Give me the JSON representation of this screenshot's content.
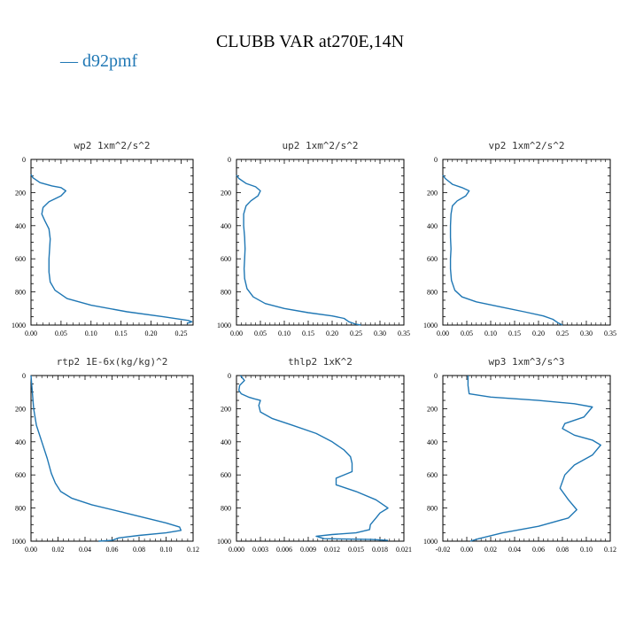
{
  "title": "CLUBB VAR at270E,14N",
  "legend": {
    "label": "— d92pmf",
    "color": "#1f77b4"
  },
  "chart_data": [
    {
      "type": "line",
      "title": "wp2  1xm^2/s^2",
      "xlim": [
        0,
        0.27
      ],
      "ylim": [
        1000,
        0
      ],
      "xticks": [
        "0.00",
        "0.05",
        "0.10",
        "0.15",
        "0.20",
        "0.25"
      ],
      "xtick_values": [
        0,
        0.05,
        0.1,
        0.15,
        0.2,
        0.25
      ],
      "yticks": [
        "0",
        "200",
        "400",
        "600",
        "800",
        "1000"
      ],
      "ytick_values": [
        0,
        200,
        400,
        600,
        800,
        1000
      ],
      "series": [
        {
          "color": "#1f77b4",
          "x": [
            0.0,
            0.003,
            0.015,
            0.035,
            0.05,
            0.058,
            0.05,
            0.03,
            0.02,
            0.018,
            0.023,
            0.03,
            0.032,
            0.031,
            0.03,
            0.03,
            0.032,
            0.04,
            0.06,
            0.1,
            0.16,
            0.22,
            0.262,
            0.268,
            0.26
          ],
          "y": [
            90,
            110,
            140,
            160,
            170,
            190,
            220,
            255,
            290,
            330,
            370,
            420,
            480,
            540,
            600,
            680,
            740,
            790,
            840,
            880,
            920,
            950,
            972,
            980,
            990
          ]
        }
      ]
    },
    {
      "type": "line",
      "title": "up2  1xm^2/s^2",
      "xlim": [
        0,
        0.35
      ],
      "ylim": [
        1000,
        0
      ],
      "xticks": [
        "0.00",
        "0.05",
        "0.10",
        "0.15",
        "0.20",
        "0.25",
        "0.30",
        "0.35"
      ],
      "xtick_values": [
        0,
        0.05,
        0.1,
        0.15,
        0.2,
        0.25,
        0.3,
        0.35
      ],
      "yticks": [
        "0",
        "200",
        "400",
        "600",
        "800",
        "1000"
      ],
      "ytick_values": [
        0,
        200,
        400,
        600,
        800,
        1000
      ],
      "series": [
        {
          "color": "#1f77b4",
          "x": [
            0.0,
            0.005,
            0.02,
            0.04,
            0.05,
            0.045,
            0.03,
            0.02,
            0.015,
            0.015,
            0.017,
            0.018,
            0.017,
            0.016,
            0.017,
            0.022,
            0.035,
            0.06,
            0.1,
            0.15,
            0.2,
            0.225,
            0.235,
            0.25,
            0.26
          ],
          "y": [
            95,
            115,
            145,
            165,
            190,
            220,
            250,
            280,
            330,
            400,
            470,
            540,
            600,
            660,
            720,
            780,
            830,
            870,
            900,
            925,
            945,
            960,
            980,
            995,
            1000
          ]
        }
      ]
    },
    {
      "type": "line",
      "title": "vp2  1xm^2/s^2",
      "xlim": [
        0,
        0.35
      ],
      "ylim": [
        1000,
        0
      ],
      "xticks": [
        "0.00",
        "0.05",
        "0.10",
        "0.15",
        "0.20",
        "0.25",
        "0.30",
        "0.35"
      ],
      "xtick_values": [
        0,
        0.05,
        0.1,
        0.15,
        0.2,
        0.25,
        0.3,
        0.35
      ],
      "yticks": [
        "0",
        "200",
        "400",
        "600",
        "800",
        "1000"
      ],
      "ytick_values": [
        0,
        200,
        400,
        600,
        800,
        1000
      ],
      "series": [
        {
          "color": "#1f77b4",
          "x": [
            0.0,
            0.005,
            0.02,
            0.04,
            0.055,
            0.048,
            0.03,
            0.02,
            0.017,
            0.016,
            0.016,
            0.017,
            0.016,
            0.016,
            0.018,
            0.025,
            0.04,
            0.07,
            0.12,
            0.17,
            0.21,
            0.23,
            0.24,
            0.25
          ],
          "y": [
            95,
            115,
            150,
            170,
            190,
            220,
            250,
            280,
            330,
            400,
            470,
            540,
            600,
            660,
            730,
            790,
            830,
            860,
            890,
            920,
            945,
            965,
            985,
            1000
          ]
        }
      ]
    },
    {
      "type": "line",
      "title": "rtp2  1E-6x(kg/kg)^2",
      "xlim": [
        0,
        0.12
      ],
      "ylim": [
        1000,
        0
      ],
      "xticks": [
        "0.00",
        "0.02",
        "0.04",
        "0.06",
        "0.08",
        "0.10",
        "0.12"
      ],
      "xtick_values": [
        0,
        0.02,
        0.04,
        0.06,
        0.08,
        0.1,
        0.12
      ],
      "yticks": [
        "0",
        "200",
        "400",
        "600",
        "800",
        "1000"
      ],
      "ytick_values": [
        0,
        200,
        400,
        600,
        800,
        1000
      ],
      "series": [
        {
          "color": "#1f77b4",
          "x": [
            0.0,
            0.001,
            0.002,
            0.004,
            0.008,
            0.012,
            0.015,
            0.018,
            0.022,
            0.03,
            0.045,
            0.065,
            0.085,
            0.1,
            0.11,
            0.111,
            0.1,
            0.08,
            0.065,
            0.06,
            0.05
          ],
          "y": [
            0,
            100,
            200,
            300,
            400,
            500,
            590,
            650,
            700,
            740,
            780,
            820,
            860,
            890,
            915,
            935,
            950,
            965,
            980,
            995,
            1000
          ]
        }
      ]
    },
    {
      "type": "line",
      "title": "thlp2  1xK^2",
      "xlim": [
        0,
        0.021
      ],
      "ylim": [
        1000,
        0
      ],
      "xticks": [
        "0.000",
        "0.003",
        "0.006",
        "0.009",
        "0.012",
        "0.015",
        "0.018",
        "0.021"
      ],
      "xtick_values": [
        0,
        0.003,
        0.006,
        0.009,
        0.012,
        0.015,
        0.018,
        0.021
      ],
      "yticks": [
        "0",
        "200",
        "400",
        "600",
        "800",
        "1000"
      ],
      "ytick_values": [
        0,
        200,
        400,
        600,
        800,
        1000
      ],
      "series": [
        {
          "color": "#1f77b4",
          "x": [
            0.0005,
            0.001,
            0.0004,
            0.0003,
            0.0006,
            0.0015,
            0.0022,
            0.003,
            0.0028,
            0.003,
            0.0045,
            0.007,
            0.01,
            0.012,
            0.0135,
            0.0143,
            0.0145,
            0.0145,
            0.0125,
            0.0125,
            0.015,
            0.0175,
            0.019,
            0.018,
            0.0175,
            0.0168,
            0.0167,
            0.015,
            0.012,
            0.01,
            0.011,
            0.017,
            0.019
          ],
          "y": [
            0,
            30,
            60,
            90,
            110,
            130,
            140,
            150,
            180,
            220,
            260,
            300,
            350,
            400,
            450,
            490,
            530,
            580,
            620,
            660,
            700,
            750,
            800,
            830,
            860,
            900,
            930,
            950,
            960,
            970,
            985,
            990,
            995
          ]
        }
      ]
    },
    {
      "type": "line",
      "title": "wp3  1xm^3/s^3",
      "xlim": [
        -0.02,
        0.12
      ],
      "ylim": [
        1000,
        0
      ],
      "xticks": [
        "-0.02",
        "0.00",
        "0.02",
        "0.04",
        "0.06",
        "0.08",
        "0.10",
        "0.12"
      ],
      "xtick_values": [
        -0.02,
        0.0,
        0.02,
        0.04,
        0.06,
        0.08,
        0.1,
        0.12
      ],
      "yticks": [
        "0",
        "200",
        "400",
        "600",
        "800",
        "1000"
      ],
      "ytick_values": [
        0,
        200,
        400,
        600,
        800,
        1000
      ],
      "series": [
        {
          "color": "#1f77b4",
          "x": [
            0.001,
            0.001,
            0.002,
            0.02,
            0.06,
            0.09,
            0.105,
            0.098,
            0.082,
            0.08,
            0.09,
            0.105,
            0.112,
            0.105,
            0.09,
            0.082,
            0.078,
            0.085,
            0.092,
            0.085,
            0.06,
            0.03,
            0.01,
            0.003
          ],
          "y": [
            0,
            60,
            110,
            130,
            150,
            170,
            190,
            250,
            290,
            320,
            360,
            390,
            420,
            480,
            540,
            600,
            680,
            750,
            810,
            860,
            910,
            950,
            985,
            1000
          ]
        }
      ]
    }
  ]
}
